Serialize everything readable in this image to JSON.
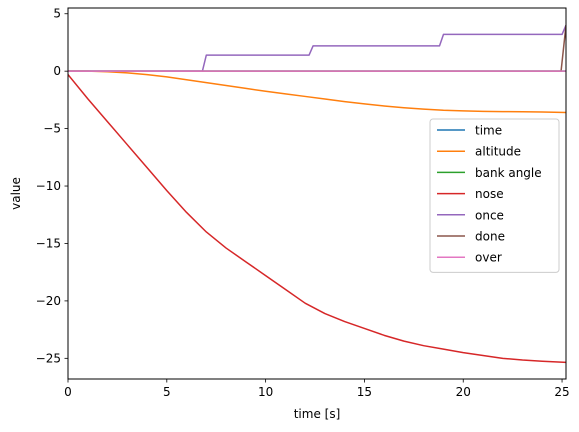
{
  "chart_data": {
    "type": "line",
    "title": "",
    "xlabel": "time [s]",
    "ylabel": "value",
    "xlim": [
      0,
      25.2
    ],
    "ylim": [
      -26.8,
      5.5
    ],
    "xticks": [
      0,
      5,
      10,
      15,
      20,
      25
    ],
    "yticks": [
      5,
      0,
      -5,
      -10,
      -15,
      -20,
      -25
    ],
    "grid": false,
    "legend_position": "center-right",
    "series": [
      {
        "name": "time",
        "color": "#1f77b4",
        "x": [
          0,
          25.2
        ],
        "y": [
          0,
          0
        ]
      },
      {
        "name": "altitude",
        "color": "#ff7f0e",
        "x": [
          0,
          1,
          2,
          3,
          4,
          5,
          6,
          7,
          8,
          9,
          10,
          11,
          12,
          13,
          14,
          15,
          16,
          17,
          18,
          19,
          20,
          21,
          22,
          23,
          24,
          25.2
        ],
        "y": [
          0,
          0,
          -0.05,
          -0.15,
          -0.3,
          -0.5,
          -0.75,
          -1.0,
          -1.25,
          -1.5,
          -1.75,
          -1.98,
          -2.2,
          -2.42,
          -2.65,
          -2.85,
          -3.03,
          -3.18,
          -3.3,
          -3.4,
          -3.46,
          -3.5,
          -3.52,
          -3.53,
          -3.55,
          -3.6
        ]
      },
      {
        "name": "bank angle",
        "color": "#2ca02c",
        "x": [
          0,
          25.2
        ],
        "y": [
          0,
          0
        ]
      },
      {
        "name": "nose",
        "color": "#d62728",
        "x": [
          0,
          1,
          2,
          3,
          4,
          5,
          6,
          7,
          8,
          9,
          10,
          11,
          12,
          13,
          14,
          15,
          16,
          17,
          18,
          19,
          20,
          21,
          22,
          23,
          24,
          25.2
        ],
        "y": [
          -0.3,
          -2.4,
          -4.4,
          -6.4,
          -8.4,
          -10.4,
          -12.3,
          -14.0,
          -15.4,
          -16.6,
          -17.8,
          -19.0,
          -20.2,
          -21.1,
          -21.8,
          -22.4,
          -23.0,
          -23.5,
          -23.9,
          -24.2,
          -24.5,
          -24.75,
          -25.0,
          -25.15,
          -25.25,
          -25.35
        ]
      },
      {
        "name": "once",
        "color": "#9467bd",
        "x": [
          0,
          6.8,
          7.0,
          12.2,
          12.4,
          18.8,
          19.0,
          25.0,
          25.2
        ],
        "y": [
          0,
          0,
          1.4,
          1.4,
          2.2,
          2.2,
          3.2,
          3.2,
          4.0
        ]
      },
      {
        "name": "done",
        "color": "#8c564b",
        "x": [
          0,
          24.95,
          25.2
        ],
        "y": [
          0,
          0,
          4.0
        ]
      },
      {
        "name": "over",
        "color": "#e377c2",
        "x": [
          0,
          25.2
        ],
        "y": [
          0,
          0
        ]
      }
    ]
  }
}
